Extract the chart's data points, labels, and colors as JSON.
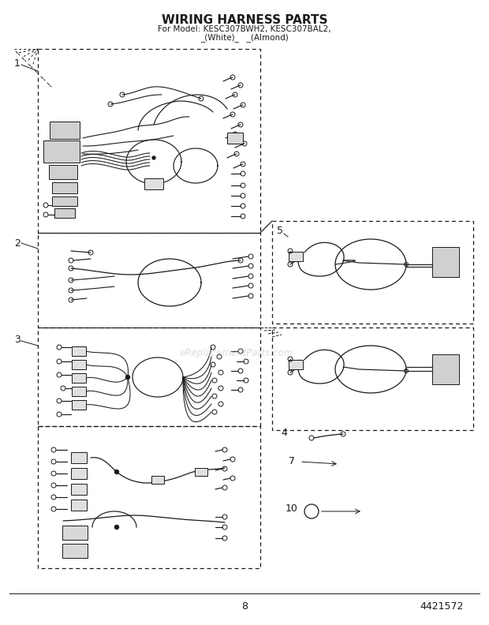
{
  "title": "WIRING HARNESS PARTS",
  "subtitle1": "For Model: KESC307BWH2, KESC307BAL2,",
  "subtitle2": "_(White)_   _(Almond)",
  "bg_color": "#ffffff",
  "line_color": "#1a1a1a",
  "page_number": "8",
  "part_number": "4421572",
  "watermark": "eReplacementParts.com",
  "fig_w": 6.2,
  "fig_h": 7.92,
  "dpi": 100
}
